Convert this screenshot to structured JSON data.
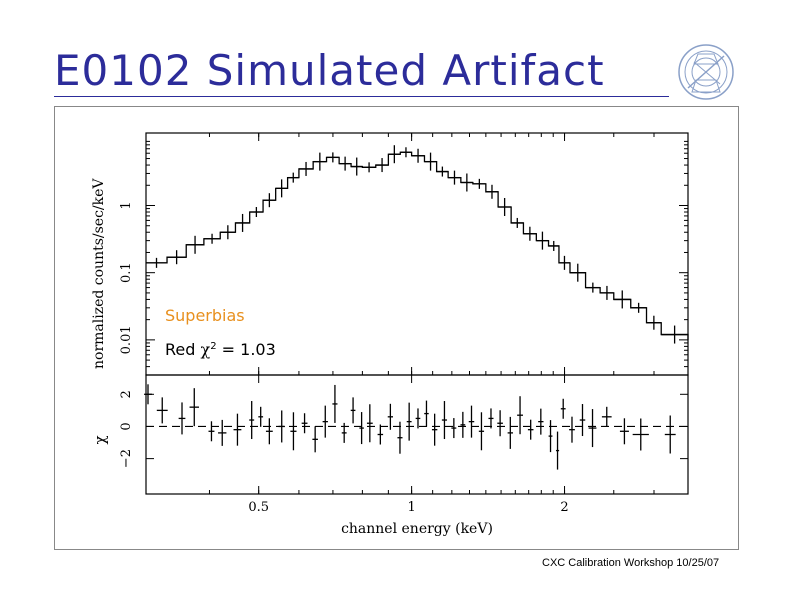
{
  "slide": {
    "title": "E0102 Simulated Artifact",
    "footer": "CXC Calibration Workshop 10/25/07",
    "title_color": "#2c2c9a",
    "logo_icon": "chandra-logo-icon"
  },
  "chart_data": [
    {
      "type": "line",
      "style": "step-with-error-crosses",
      "xlabel": "channel energy (keV)",
      "ylabel": "normalized counts/sec/keV",
      "x_scale": "log",
      "y_scale": "log",
      "xlim": [
        0.3,
        3.5
      ],
      "ylim": [
        0.003,
        12
      ],
      "xticks": [
        0.5,
        1,
        2
      ],
      "xtick_labels": [
        "0.5",
        "1",
        "2"
      ],
      "yticks": [
        0.01,
        0.1,
        1
      ],
      "ytick_labels": [
        "0.01",
        "0.1",
        "1"
      ],
      "annotations": [
        {
          "text": "Superbias",
          "color": "#e8901e"
        },
        {
          "text_prefix": "Red ",
          "symbol": "χ",
          "superscript": "2",
          "text_suffix": " = 1.03",
          "color": "#000000"
        }
      ],
      "series": [
        {
          "name": "model",
          "x": [
            0.3,
            0.33,
            0.36,
            0.39,
            0.42,
            0.45,
            0.48,
            0.51,
            0.54,
            0.57,
            0.6,
            0.64,
            0.68,
            0.72,
            0.76,
            0.8,
            0.85,
            0.9,
            0.95,
            1.0,
            1.06,
            1.12,
            1.18,
            1.25,
            1.32,
            1.4,
            1.48,
            1.57,
            1.66,
            1.76,
            1.86,
            1.95,
            2.05,
            2.2,
            2.35,
            2.5,
            2.7,
            2.9,
            3.1,
            3.5
          ],
          "y": [
            0.14,
            0.17,
            0.26,
            0.32,
            0.4,
            0.55,
            0.8,
            1.2,
            1.8,
            2.6,
            3.5,
            4.5,
            5.2,
            4.2,
            3.8,
            3.7,
            4.0,
            5.8,
            6.2,
            5.5,
            4.5,
            3.2,
            2.6,
            2.2,
            2.1,
            1.6,
            0.95,
            0.55,
            0.38,
            0.3,
            0.25,
            0.14,
            0.1,
            0.06,
            0.05,
            0.04,
            0.03,
            0.018,
            0.012,
            0.01
          ]
        }
      ]
    },
    {
      "type": "scatter",
      "style": "residual-error-crosses",
      "ylabel": "χ",
      "x_scale": "log",
      "xlim": [
        0.3,
        3.5
      ],
      "ylim": [
        -4.2,
        3.2
      ],
      "yticks": [
        -2,
        0,
        2
      ],
      "ytick_labels": [
        "−2",
        "0",
        "2"
      ],
      "reference_line": 0,
      "series": [
        {
          "name": "residuals",
          "x": [
            0.3,
            0.32,
            0.35,
            0.37,
            0.4,
            0.42,
            0.45,
            0.48,
            0.5,
            0.52,
            0.55,
            0.58,
            0.61,
            0.64,
            0.67,
            0.7,
            0.73,
            0.76,
            0.79,
            0.82,
            0.86,
            0.9,
            0.94,
            0.98,
            1.02,
            1.06,
            1.1,
            1.15,
            1.2,
            1.25,
            1.3,
            1.36,
            1.42,
            1.48,
            1.55,
            1.62,
            1.7,
            1.78,
            1.86,
            1.92,
            1.97,
            2.05,
            2.15,
            2.25,
            2.4,
            2.6,
            2.8,
            3.2
          ],
          "y": [
            2.0,
            1.0,
            0.5,
            1.2,
            -0.3,
            -0.4,
            -0.2,
            0.4,
            0.6,
            -0.3,
            0.0,
            -0.3,
            0.2,
            -0.8,
            0.3,
            1.4,
            -0.4,
            1.0,
            -0.1,
            0.2,
            -0.5,
            0.6,
            -0.7,
            0.3,
            0.5,
            0.8,
            -0.2,
            0.4,
            -0.1,
            0.1,
            0.3,
            -0.3,
            0.5,
            0.2,
            -0.4,
            0.7,
            -0.2,
            0.3,
            -0.6,
            -1.5,
            1.1,
            -0.2,
            0.4,
            -0.1,
            0.6,
            -0.3,
            -0.5,
            -0.5
          ]
        }
      ]
    }
  ]
}
